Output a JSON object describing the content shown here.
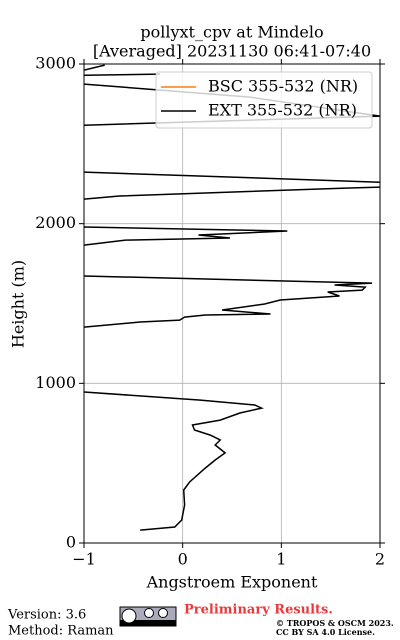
{
  "chart_data": {
    "type": "line",
    "title": "pollyxt_cpv at Mindelo",
    "subtitle": "[Averaged] 20231130 06:41-07:40",
    "xlabel": "Angstroem Exponent",
    "ylabel": "Height (m)",
    "xlim": [
      -1,
      2
    ],
    "ylim": [
      0,
      3000
    ],
    "xticks": [
      {
        "value": -1,
        "label": "−1"
      },
      0,
      1,
      2
    ],
    "yticks": [
      0,
      1000,
      2000,
      3000
    ],
    "grid": true,
    "legend": "upper right",
    "series": [
      {
        "name": "BSC 355-532 (NR)",
        "color": "#ff7f0e",
        "x": [],
        "y": []
      },
      {
        "name": "EXT 355-532 (NR)",
        "color": "#000000",
        "x": [
          -0.43,
          -0.08,
          -0.01,
          0.02,
          0.01,
          0.07,
          0.23,
          0.33,
          0.43,
          0.33,
          0.38,
          0.28,
          0.12,
          0.1,
          0.38,
          0.58,
          0.8,
          0.73,
          0.18,
          -1.0,
          null,
          -1.0,
          -0.43,
          -0.03,
          0.02,
          0.23,
          0.89,
          0.4,
          0.83,
          0.99,
          1.59,
          1.47,
          1.82,
          1.85,
          1.54,
          1.92,
          -1.0,
          null,
          -1.0,
          -0.58,
          0.48,
          0.16,
          1.06,
          -1.0,
          null,
          -1.0,
          -0.64,
          1.65,
          2.0,
          null,
          -1.0,
          2.0,
          null,
          -1.0,
          2.0,
          null,
          -1.0,
          0.68,
          2.0,
          null,
          -1.0,
          -0.23,
          null,
          -1.0,
          -0.79
        ],
        "y": [
          81,
          100,
          144,
          238,
          332,
          382,
          470,
          520,
          564,
          614,
          645,
          676,
          708,
          739,
          770,
          814,
          845,
          864,
          895,
          946,
          null,
          1352,
          1384,
          1396,
          1415,
          1428,
          1434,
          1459,
          1497,
          1522,
          1547,
          1572,
          1584,
          1603,
          1616,
          1628,
          1672,
          null,
          1866,
          1897,
          1910,
          1929,
          1954,
          1979,
          null,
          2154,
          2173,
          2223,
          2229,
          null,
          2323,
          2260,
          null,
          2617,
          2674,
          null,
          2874,
          2793,
          2674,
          null,
          2930,
          2937,
          null,
          2962,
          2993
        ]
      }
    ]
  },
  "footer": {
    "version": "Version: 3.6",
    "method": "Method: Raman",
    "notice": "Preliminary Results.",
    "copyright": "© TROPOS & OSCM 2023.",
    "license": "CC BY SA 4.0 License."
  }
}
